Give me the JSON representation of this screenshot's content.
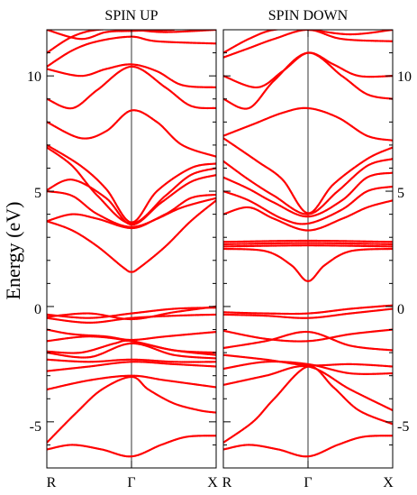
{
  "chart_data": [
    {
      "type": "scatter",
      "title": "SPIN UP",
      "ylabel": "Energy (eV)",
      "ylim": [
        -7,
        12
      ],
      "yticks": [
        "-5",
        "0",
        "5",
        "10"
      ],
      "xticks": [
        "R",
        "Γ",
        "X"
      ],
      "x_range": [
        0,
        2
      ],
      "series_color": "#ff0000",
      "bands": [
        [
          [
            0,
            -6.2
          ],
          [
            0.3,
            -6.0
          ],
          [
            0.65,
            -6.2
          ],
          [
            1,
            -6.5
          ],
          [
            1.35,
            -6.0
          ],
          [
            1.65,
            -5.65
          ],
          [
            2,
            -5.6
          ]
        ],
        [
          [
            0,
            -5.9
          ],
          [
            0.35,
            -4.6
          ],
          [
            0.65,
            -3.6
          ],
          [
            1,
            -3.05
          ],
          [
            1.2,
            -3.6
          ],
          [
            1.5,
            -4.2
          ],
          [
            1.8,
            -4.5
          ],
          [
            2,
            -4.6
          ]
        ],
        [
          [
            0,
            -3.6
          ],
          [
            0.5,
            -3.2
          ],
          [
            1,
            -3.0
          ],
          [
            1.4,
            -3.2
          ],
          [
            2,
            -3.5
          ]
        ],
        [
          [
            0,
            -2.8
          ],
          [
            0.5,
            -2.6
          ],
          [
            1,
            -2.4
          ],
          [
            1.5,
            -2.5
          ],
          [
            2,
            -2.6
          ]
        ],
        [
          [
            0,
            -2.3
          ],
          [
            0.5,
            -2.4
          ],
          [
            1,
            -2.3
          ],
          [
            1.5,
            -2.4
          ],
          [
            2,
            -2.4
          ]
        ],
        [
          [
            0,
            -2.0
          ],
          [
            0.5,
            -2.2
          ],
          [
            1,
            -1.6
          ],
          [
            1.5,
            -2.1
          ],
          [
            2,
            -2.25
          ]
        ],
        [
          [
            0,
            -1.95
          ],
          [
            0.4,
            -2.0
          ],
          [
            0.8,
            -1.6
          ],
          [
            1,
            -1.5
          ],
          [
            1.5,
            -1.9
          ],
          [
            2,
            -2.0
          ]
        ],
        [
          [
            0,
            -1.5
          ],
          [
            0.5,
            -1.3
          ],
          [
            1,
            -1.5
          ],
          [
            1.5,
            -1.9
          ],
          [
            2,
            -2.1
          ]
        ],
        [
          [
            0,
            -1.0
          ],
          [
            0.3,
            -1.2
          ],
          [
            0.7,
            -1.3
          ],
          [
            1,
            -1.45
          ],
          [
            1.4,
            -1.3
          ],
          [
            2,
            -1.1
          ]
        ],
        [
          [
            0,
            -0.5
          ],
          [
            0.5,
            -0.7
          ],
          [
            1,
            -0.5
          ],
          [
            1.5,
            -0.4
          ],
          [
            2,
            -0.35
          ]
        ],
        [
          [
            0,
            -0.45
          ],
          [
            0.5,
            -0.3
          ],
          [
            1,
            -0.55
          ],
          [
            1.5,
            -0.25
          ],
          [
            2,
            0
          ]
        ],
        [
          [
            0,
            -0.35
          ],
          [
            0.5,
            -0.5
          ],
          [
            1,
            -0.3
          ],
          [
            1.5,
            -0.1
          ],
          [
            2,
            -0.05
          ]
        ],
        [
          [
            0,
            3.7
          ],
          [
            0.3,
            3.3
          ],
          [
            0.6,
            2.6
          ],
          [
            0.9,
            1.7
          ],
          [
            1,
            1.5
          ],
          [
            1.1,
            1.7
          ],
          [
            1.4,
            2.6
          ],
          [
            1.7,
            3.7
          ],
          [
            2,
            4.6
          ]
        ],
        [
          [
            0,
            3.7
          ],
          [
            0.3,
            4.0
          ],
          [
            0.6,
            3.8
          ],
          [
            1,
            3.4
          ],
          [
            1.3,
            3.8
          ],
          [
            1.6,
            4.3
          ],
          [
            2,
            4.7
          ]
        ],
        [
          [
            0,
            5.0
          ],
          [
            0.3,
            4.8
          ],
          [
            0.6,
            4.0
          ],
          [
            1,
            3.45
          ],
          [
            1.4,
            4.0
          ],
          [
            1.7,
            4.7
          ],
          [
            2,
            4.85
          ]
        ],
        [
          [
            0,
            5.05
          ],
          [
            0.3,
            5.5
          ],
          [
            0.7,
            4.7
          ],
          [
            1,
            3.55
          ],
          [
            1.35,
            4.5
          ],
          [
            1.7,
            5.4
          ],
          [
            2,
            5.7
          ]
        ],
        [
          [
            0,
            6.9
          ],
          [
            0.3,
            6.1
          ],
          [
            0.6,
            4.8
          ],
          [
            1,
            3.6
          ],
          [
            1.4,
            4.8
          ],
          [
            1.7,
            5.7
          ],
          [
            2,
            6.0
          ]
        ],
        [
          [
            0,
            7.0
          ],
          [
            0.4,
            6.1
          ],
          [
            0.7,
            5.1
          ],
          [
            1,
            3.65
          ],
          [
            1.3,
            5.0
          ],
          [
            1.7,
            6.0
          ],
          [
            2,
            6.2
          ]
        ],
        [
          [
            0,
            8.0
          ],
          [
            0.4,
            7.3
          ],
          [
            0.7,
            7.6
          ],
          [
            1,
            8.5
          ],
          [
            1.3,
            8.0
          ],
          [
            1.6,
            7.0
          ],
          [
            2,
            6.5
          ]
        ],
        [
          [
            0,
            9.0
          ],
          [
            0.3,
            8.6
          ],
          [
            0.6,
            9.4
          ],
          [
            1,
            10.4
          ],
          [
            1.4,
            9.5
          ],
          [
            1.7,
            8.7
          ],
          [
            2,
            8.6
          ]
        ],
        [
          [
            0,
            10.3
          ],
          [
            0.4,
            10.0
          ],
          [
            0.7,
            10.3
          ],
          [
            1,
            10.5
          ],
          [
            1.3,
            10.2
          ],
          [
            1.6,
            9.6
          ],
          [
            2,
            9.5
          ]
        ],
        [
          [
            0,
            10.4
          ],
          [
            0.3,
            11.1
          ],
          [
            0.6,
            11.5
          ],
          [
            1,
            11.7
          ],
          [
            1.3,
            11.5
          ],
          [
            2,
            11.4
          ]
        ],
        [
          [
            0,
            11.0
          ],
          [
            0.3,
            11.7
          ],
          [
            0.6,
            12.0
          ],
          [
            1,
            12.0
          ],
          [
            1.4,
            11.9
          ],
          [
            2,
            12.0
          ]
        ],
        [
          [
            0,
            12.0
          ],
          [
            0.4,
            11.6
          ],
          [
            0.7,
            11.9
          ],
          [
            1,
            11.95
          ],
          [
            1.5,
            12.0
          ]
        ]
      ]
    },
    {
      "type": "scatter",
      "title": "SPIN DOWN",
      "ylim": [
        -7,
        12
      ],
      "yticks": [
        "-5",
        "0",
        "5",
        "10"
      ],
      "xticks": [
        "R",
        "Γ",
        "X"
      ],
      "x_range": [
        0,
        2
      ],
      "series_color": "#ff0000",
      "bands": [
        [
          [
            0,
            -6.2
          ],
          [
            0.3,
            -6.0
          ],
          [
            0.65,
            -6.2
          ],
          [
            1,
            -6.5
          ],
          [
            1.35,
            -6.0
          ],
          [
            1.65,
            -5.65
          ],
          [
            2,
            -5.6
          ]
        ],
        [
          [
            0,
            -5.9
          ],
          [
            0.35,
            -5.0
          ],
          [
            0.6,
            -4.0
          ],
          [
            1,
            -2.6
          ],
          [
            1.3,
            -3.5
          ],
          [
            1.6,
            -4.5
          ],
          [
            2,
            -5.1
          ]
        ],
        [
          [
            0,
            -3.4
          ],
          [
            0.5,
            -3.0
          ],
          [
            1,
            -2.6
          ],
          [
            1.5,
            -3.6
          ],
          [
            2,
            -4.5
          ]
        ],
        [
          [
            0,
            -2.7
          ],
          [
            0.5,
            -2.4
          ],
          [
            1,
            -2.5
          ],
          [
            1.5,
            -2.9
          ],
          [
            2,
            -2.9
          ]
        ],
        [
          [
            0,
            -2.1
          ],
          [
            0.5,
            -2.3
          ],
          [
            1,
            -2.55
          ],
          [
            1.5,
            -2.5
          ],
          [
            2,
            -2.6
          ]
        ],
        [
          [
            0,
            -1.8
          ],
          [
            0.5,
            -1.5
          ],
          [
            1,
            -1.1
          ],
          [
            1.5,
            -1.7
          ],
          [
            2,
            -1.9
          ]
        ],
        [
          [
            0,
            -1.05
          ],
          [
            0.5,
            -1.4
          ],
          [
            1,
            -1.5
          ],
          [
            1.5,
            -1.2
          ],
          [
            2,
            -1.0
          ]
        ],
        [
          [
            0,
            -0.35
          ],
          [
            0.5,
            -0.4
          ],
          [
            1,
            -0.5
          ],
          [
            1.5,
            -0.3
          ],
          [
            2,
            -0.1
          ]
        ],
        [
          [
            0,
            -0.25
          ],
          [
            0.5,
            -0.3
          ],
          [
            1,
            -0.3
          ],
          [
            1.5,
            -0.1
          ],
          [
            2,
            0.05
          ]
        ],
        [
          [
            0,
            2.5
          ],
          [
            0.5,
            2.4
          ],
          [
            0.8,
            1.8
          ],
          [
            1,
            1.1
          ],
          [
            1.2,
            1.8
          ],
          [
            1.5,
            2.4
          ],
          [
            2,
            2.5
          ]
        ],
        [
          [
            0,
            2.6
          ],
          [
            1,
            2.65
          ],
          [
            2,
            2.6
          ]
        ],
        [
          [
            0,
            2.7
          ],
          [
            1,
            2.75
          ],
          [
            2,
            2.7
          ]
        ],
        [
          [
            0,
            2.8
          ],
          [
            1,
            2.85
          ],
          [
            2,
            2.8
          ]
        ],
        [
          [
            0,
            4.0
          ],
          [
            0.3,
            4.3
          ],
          [
            0.6,
            3.8
          ],
          [
            1,
            3.3
          ],
          [
            1.4,
            3.8
          ],
          [
            1.7,
            4.3
          ],
          [
            2,
            4.6
          ]
        ],
        [
          [
            0,
            5.0
          ],
          [
            0.3,
            4.6
          ],
          [
            0.7,
            3.8
          ],
          [
            1,
            3.6
          ],
          [
            1.4,
            4.2
          ],
          [
            1.7,
            5.0
          ],
          [
            2,
            5.2
          ]
        ],
        [
          [
            0,
            5.6
          ],
          [
            0.3,
            5.1
          ],
          [
            0.6,
            4.5
          ],
          [
            1,
            3.9
          ],
          [
            1.4,
            4.6
          ],
          [
            1.7,
            5.6
          ],
          [
            2,
            5.8
          ]
        ],
        [
          [
            0,
            6.3
          ],
          [
            0.3,
            5.5
          ],
          [
            0.6,
            4.8
          ],
          [
            1,
            4.0
          ],
          [
            1.35,
            5.0
          ],
          [
            1.7,
            6.1
          ],
          [
            2,
            6.4
          ]
        ],
        [
          [
            0,
            7.3
          ],
          [
            0.4,
            6.3
          ],
          [
            0.7,
            5.5
          ],
          [
            1,
            4.05
          ],
          [
            1.3,
            5.3
          ],
          [
            1.7,
            6.4
          ],
          [
            2,
            6.9
          ]
        ],
        [
          [
            0,
            7.4
          ],
          [
            0.35,
            7.9
          ],
          [
            0.7,
            8.4
          ],
          [
            1,
            8.6
          ],
          [
            1.35,
            8.2
          ],
          [
            1.7,
            7.4
          ],
          [
            2,
            7.2
          ]
        ],
        [
          [
            0,
            9.0
          ],
          [
            0.3,
            8.6
          ],
          [
            0.6,
            9.8
          ],
          [
            1,
            11.0
          ],
          [
            1.4,
            10.0
          ],
          [
            1.7,
            9.2
          ],
          [
            2,
            9.0
          ]
        ],
        [
          [
            0,
            10.0
          ],
          [
            0.4,
            9.5
          ],
          [
            0.7,
            10.2
          ],
          [
            1,
            11.0
          ],
          [
            1.3,
            10.5
          ],
          [
            1.6,
            10.0
          ],
          [
            2,
            10.0
          ]
        ],
        [
          [
            0,
            10.8
          ],
          [
            0.3,
            11.2
          ],
          [
            0.6,
            11.6
          ],
          [
            1,
            12.0
          ],
          [
            1.4,
            11.6
          ],
          [
            2,
            11.5
          ]
        ],
        [
          [
            0,
            11.0
          ],
          [
            0.3,
            11.6
          ],
          [
            0.6,
            12.0
          ],
          [
            1,
            12.0
          ],
          [
            1.5,
            11.8
          ],
          [
            2,
            12.0
          ]
        ]
      ]
    }
  ]
}
